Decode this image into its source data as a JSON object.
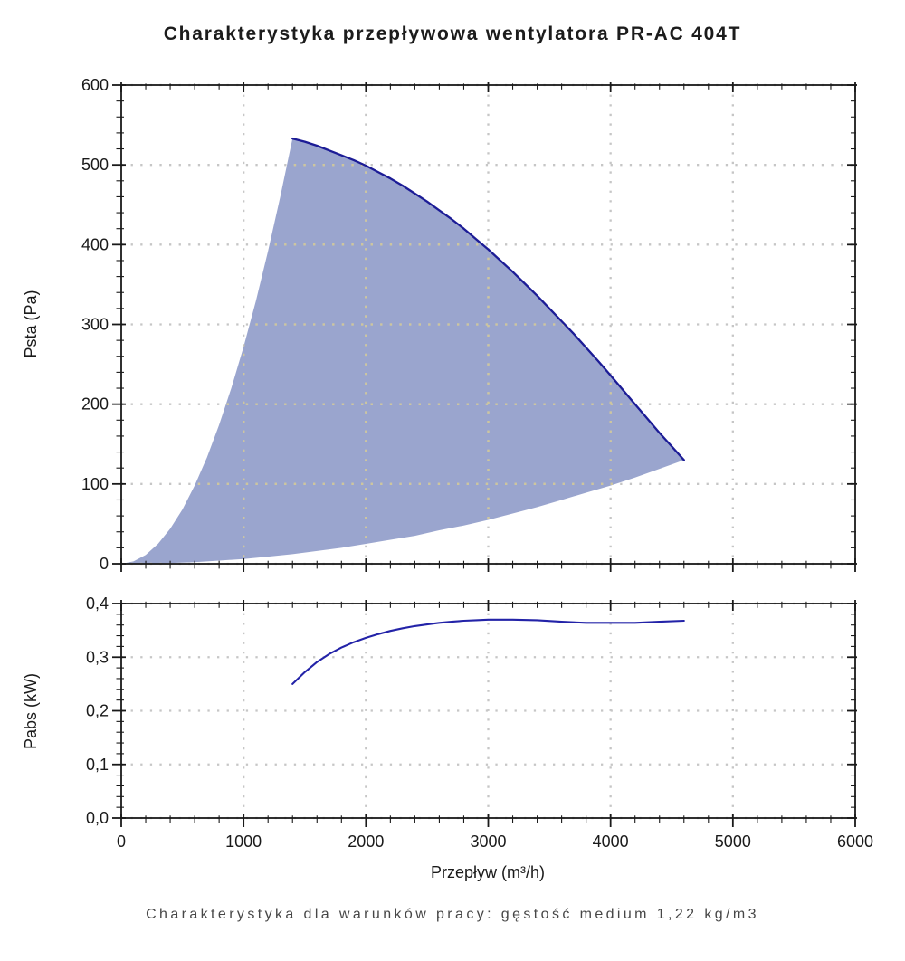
{
  "page": {
    "title": "Charakterystyka przepływowa wentylatora PR-AC 404T",
    "caption": "Charakterystyka dla warunków pracy: gęstość medium 1,22 kg/m3"
  },
  "colors": {
    "background": "#ffffff",
    "area_fill": "#9aa5ce",
    "curve": "#1c1c96",
    "grid": "#c6c6c6",
    "grid_on_fill": "#cec69c",
    "axis": "#1a1a1a",
    "text": "#1a1a1a",
    "caption_text": "#474747"
  },
  "chart_data": [
    {
      "type": "area",
      "name": "fan-pressure-chart",
      "title": "",
      "xlabel": "",
      "ylabel": "Psta (Pa)",
      "xlim": [
        0,
        6000
      ],
      "ylim": [
        0,
        600
      ],
      "x_major_step": 1000,
      "x_minor_step": 200,
      "y_major_step": 100,
      "y_minor_step": 20,
      "grid": "dotted",
      "legend": "none",
      "ytick_labels": [
        "0",
        "100",
        "200",
        "300",
        "400",
        "500",
        "600"
      ],
      "series": [
        {
          "name": "min-flow-boundary",
          "points": [
            [
              0,
              0
            ],
            [
              100,
              3
            ],
            [
              200,
              11
            ],
            [
              300,
              25
            ],
            [
              400,
              44
            ],
            [
              500,
              68
            ],
            [
              600,
              98
            ],
            [
              700,
              133
            ],
            [
              800,
              174
            ],
            [
              900,
              220
            ],
            [
              1000,
              272
            ],
            [
              1100,
              329
            ],
            [
              1200,
              392
            ],
            [
              1300,
              460
            ],
            [
              1400,
              533
            ]
          ]
        },
        {
          "name": "fan-curve",
          "points": [
            [
              1400,
              533
            ],
            [
              1500,
              529
            ],
            [
              1600,
              524
            ],
            [
              1700,
              518
            ],
            [
              1800,
              512
            ],
            [
              1900,
              506
            ],
            [
              2000,
              499
            ],
            [
              2100,
              491
            ],
            [
              2200,
              483
            ],
            [
              2300,
              474
            ],
            [
              2400,
              464
            ],
            [
              2500,
              454
            ],
            [
              2600,
              443
            ],
            [
              2700,
              432
            ],
            [
              2800,
              420
            ],
            [
              2900,
              407
            ],
            [
              3000,
              394
            ],
            [
              3100,
              380
            ],
            [
              3200,
              366
            ],
            [
              3300,
              351
            ],
            [
              3400,
              336
            ],
            [
              3500,
              320
            ],
            [
              3600,
              304
            ],
            [
              3700,
              288
            ],
            [
              3800,
              271
            ],
            [
              3900,
              254
            ],
            [
              4000,
              236
            ],
            [
              4100,
              218
            ],
            [
              4200,
              200
            ],
            [
              4300,
              182
            ],
            [
              4400,
              164
            ],
            [
              4500,
              147
            ],
            [
              4600,
              130
            ]
          ]
        },
        {
          "name": "min-pressure-boundary",
          "points": [
            [
              0,
              0
            ],
            [
              200,
              0
            ],
            [
              400,
              1
            ],
            [
              600,
              2
            ],
            [
              800,
              4
            ],
            [
              1000,
              6
            ],
            [
              1200,
              9
            ],
            [
              1400,
              12
            ],
            [
              1600,
              16
            ],
            [
              1800,
              20
            ],
            [
              2000,
              25
            ],
            [
              2200,
              30
            ],
            [
              2400,
              35
            ],
            [
              2600,
              42
            ],
            [
              2800,
              48
            ],
            [
              3000,
              55
            ],
            [
              3200,
              63
            ],
            [
              3400,
              71
            ],
            [
              3600,
              80
            ],
            [
              3800,
              89
            ],
            [
              4000,
              98
            ],
            [
              4200,
              108
            ],
            [
              4400,
              119
            ],
            [
              4600,
              130
            ]
          ]
        }
      ]
    },
    {
      "type": "line",
      "name": "power-chart",
      "title": "",
      "xlabel": "Przepływ (m³/h)",
      "ylabel": "Pabs (kW)",
      "xlim": [
        0,
        6000
      ],
      "ylim": [
        0,
        0.4
      ],
      "x_major_step": 1000,
      "x_minor_step": 200,
      "y_major_step": 0.1,
      "y_minor_step": 0.02,
      "grid": "dotted",
      "legend": "none",
      "xtick_labels": [
        "0",
        "1000",
        "2000",
        "3000",
        "4000",
        "5000",
        "6000"
      ],
      "ytick_labels": [
        "0,0",
        "0,1",
        "0,2",
        "0,3",
        "0,4"
      ],
      "series": [
        {
          "name": "power-curve",
          "points": [
            [
              1400,
              0.25
            ],
            [
              1500,
              0.272
            ],
            [
              1600,
              0.291
            ],
            [
              1700,
              0.306
            ],
            [
              1800,
              0.318
            ],
            [
              1900,
              0.328
            ],
            [
              2000,
              0.336
            ],
            [
              2100,
              0.343
            ],
            [
              2200,
              0.349
            ],
            [
              2300,
              0.354
            ],
            [
              2400,
              0.358
            ],
            [
              2500,
              0.361
            ],
            [
              2600,
              0.364
            ],
            [
              2700,
              0.366
            ],
            [
              2800,
              0.368
            ],
            [
              2900,
              0.369
            ],
            [
              3000,
              0.37
            ],
            [
              3200,
              0.37
            ],
            [
              3400,
              0.369
            ],
            [
              3600,
              0.366
            ],
            [
              3800,
              0.364
            ],
            [
              4000,
              0.364
            ],
            [
              4200,
              0.364
            ],
            [
              4400,
              0.366
            ],
            [
              4600,
              0.368
            ]
          ]
        }
      ]
    }
  ]
}
